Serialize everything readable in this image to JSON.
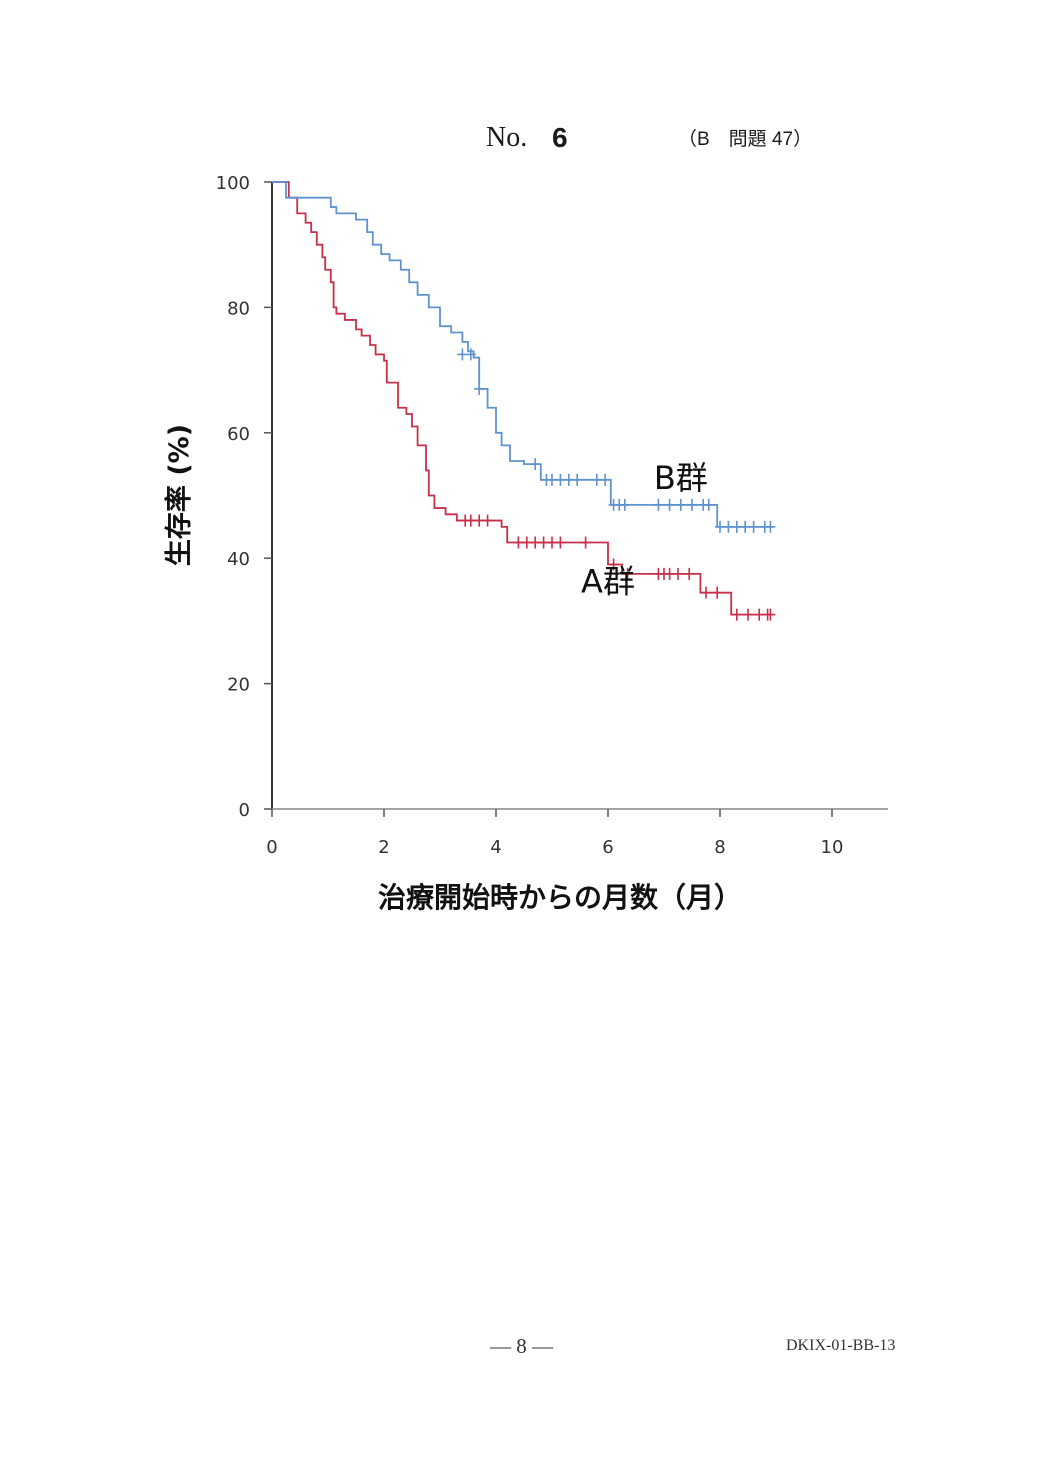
{
  "header": {
    "no_label": "No.",
    "number": "6",
    "ref": "（B　問題 47）"
  },
  "footer": {
    "page": "— 8 —",
    "code": "DKIX-01-BB-13"
  },
  "chart_data": {
    "type": "line",
    "subtype": "kaplan-meier step",
    "xlabel": "治療開始時からの月数（月）",
    "ylabel": "生存率 (%)",
    "xlim": [
      0,
      11
    ],
    "ylim": [
      0,
      100
    ],
    "xticks": [
      0,
      2,
      4,
      6,
      8,
      10
    ],
    "yticks": [
      0,
      20,
      40,
      60,
      80,
      100
    ],
    "grid": false,
    "series": [
      {
        "name": "A群",
        "color": "#c8304a",
        "steps": [
          [
            0,
            100
          ],
          [
            0.3,
            97.5
          ],
          [
            0.45,
            95
          ],
          [
            0.6,
            93.5
          ],
          [
            0.7,
            92
          ],
          [
            0.8,
            90
          ],
          [
            0.9,
            88
          ],
          [
            0.95,
            86
          ],
          [
            1.05,
            84
          ],
          [
            1.1,
            80
          ],
          [
            1.15,
            79
          ],
          [
            1.3,
            78
          ],
          [
            1.5,
            76.5
          ],
          [
            1.6,
            75.5
          ],
          [
            1.75,
            74
          ],
          [
            1.85,
            72.5
          ],
          [
            2.0,
            71.5
          ],
          [
            2.05,
            68
          ],
          [
            2.25,
            64
          ],
          [
            2.4,
            63
          ],
          [
            2.5,
            61
          ],
          [
            2.6,
            58
          ],
          [
            2.75,
            54
          ],
          [
            2.8,
            50
          ],
          [
            2.9,
            48
          ],
          [
            3.1,
            47
          ],
          [
            3.3,
            46
          ],
          [
            4.1,
            45
          ],
          [
            4.2,
            42.5
          ],
          [
            6.0,
            39
          ],
          [
            6.25,
            37.5
          ],
          [
            7.65,
            34.5
          ],
          [
            8.2,
            31
          ],
          [
            8.95,
            31
          ]
        ],
        "censors": [
          [
            3.45,
            46
          ],
          [
            3.55,
            46
          ],
          [
            3.7,
            46
          ],
          [
            3.85,
            46
          ],
          [
            4.4,
            42.5
          ],
          [
            4.55,
            42.5
          ],
          [
            4.7,
            42.5
          ],
          [
            4.85,
            42.5
          ],
          [
            5.0,
            42.5
          ],
          [
            5.15,
            42.5
          ],
          [
            5.6,
            42.5
          ],
          [
            6.1,
            39
          ],
          [
            6.35,
            37.5
          ],
          [
            6.9,
            37.5
          ],
          [
            7.0,
            37.5
          ],
          [
            7.1,
            37.5
          ],
          [
            7.25,
            37.5
          ],
          [
            7.45,
            37.5
          ],
          [
            7.75,
            34.5
          ],
          [
            7.95,
            34.5
          ],
          [
            8.3,
            31
          ],
          [
            8.5,
            31
          ],
          [
            8.7,
            31
          ],
          [
            8.85,
            31
          ],
          [
            8.9,
            31
          ]
        ],
        "label_pos": [
          6.0,
          34.5
        ]
      },
      {
        "name": "B群",
        "color": "#5f93cf",
        "steps": [
          [
            0,
            100
          ],
          [
            0.25,
            97.5
          ],
          [
            1.05,
            96
          ],
          [
            1.15,
            95
          ],
          [
            1.5,
            94
          ],
          [
            1.7,
            92
          ],
          [
            1.8,
            90
          ],
          [
            1.95,
            88.5
          ],
          [
            2.1,
            87.5
          ],
          [
            2.3,
            86
          ],
          [
            2.45,
            84
          ],
          [
            2.6,
            82
          ],
          [
            2.8,
            80
          ],
          [
            3.0,
            77
          ],
          [
            3.2,
            76
          ],
          [
            3.4,
            74.5
          ],
          [
            3.5,
            73
          ],
          [
            3.6,
            72
          ],
          [
            3.7,
            67
          ],
          [
            3.85,
            64
          ],
          [
            4.0,
            60
          ],
          [
            4.1,
            58
          ],
          [
            4.25,
            55.5
          ],
          [
            4.5,
            55
          ],
          [
            4.8,
            52.5
          ],
          [
            6.05,
            48.5
          ],
          [
            7.95,
            45
          ],
          [
            8.95,
            45
          ]
        ],
        "censors": [
          [
            3.4,
            72.5
          ],
          [
            3.55,
            72.5
          ],
          [
            3.7,
            67
          ],
          [
            4.7,
            55
          ],
          [
            4.9,
            52.5
          ],
          [
            5.0,
            52.5
          ],
          [
            5.15,
            52.5
          ],
          [
            5.3,
            52.5
          ],
          [
            5.45,
            52.5
          ],
          [
            5.8,
            52.5
          ],
          [
            5.95,
            52.5
          ],
          [
            6.1,
            48.5
          ],
          [
            6.2,
            48.5
          ],
          [
            6.3,
            48.5
          ],
          [
            6.9,
            48.5
          ],
          [
            7.1,
            48.5
          ],
          [
            7.3,
            48.5
          ],
          [
            7.5,
            48.5
          ],
          [
            7.7,
            48.5
          ],
          [
            7.8,
            48.5
          ],
          [
            8.0,
            45
          ],
          [
            8.15,
            45
          ],
          [
            8.3,
            45
          ],
          [
            8.45,
            45
          ],
          [
            8.6,
            45
          ],
          [
            8.8,
            45
          ],
          [
            8.9,
            45
          ]
        ],
        "label_pos": [
          7.3,
          51
        ]
      }
    ]
  }
}
